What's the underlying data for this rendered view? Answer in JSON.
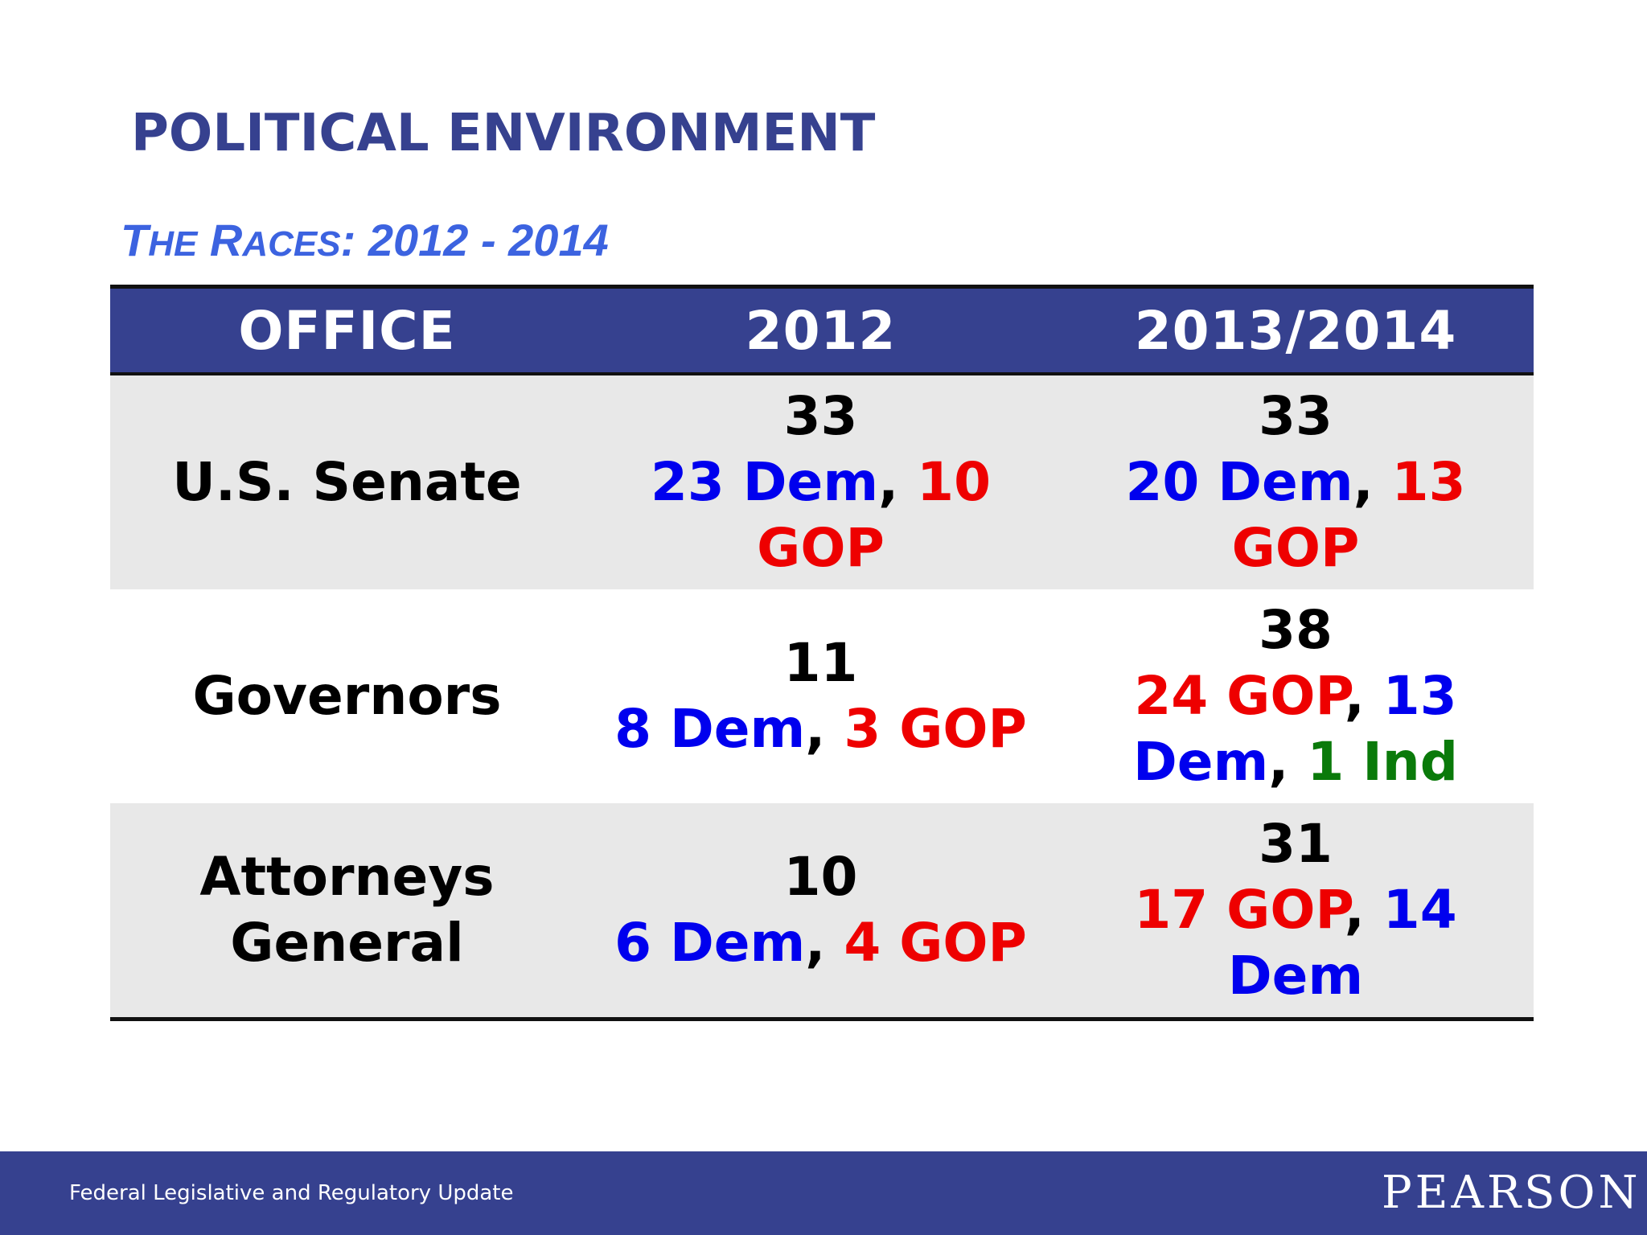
{
  "title": "POLITICAL ENVIRONMENT",
  "subtitle": {
    "a1": "T",
    "a2": "HE",
    "b1": "R",
    "b2": "ACES",
    "rest": ": 2012 - 2014"
  },
  "table": {
    "headers": [
      "OFFICE",
      "2012",
      "2013/2014"
    ],
    "rows": [
      {
        "office": "U.S. Senate",
        "y2012": {
          "total": "33",
          "parts": [
            {
              "text": "23 Dem",
              "party": "dem"
            },
            {
              "text": "10 GOP",
              "party": "gop"
            }
          ]
        },
        "y2014": {
          "total": "33",
          "parts": [
            {
              "text": "20 Dem",
              "party": "dem"
            },
            {
              "text": "13 GOP",
              "party": "gop"
            }
          ]
        }
      },
      {
        "office": "Governors",
        "y2012": {
          "total": "11",
          "parts": [
            {
              "text": "8 Dem",
              "party": "dem"
            },
            {
              "text": "3 GOP",
              "party": "gop"
            }
          ]
        },
        "y2014": {
          "total": "38",
          "parts": [
            {
              "text": "24 GOP",
              "party": "gop"
            },
            {
              "text": "13 Dem",
              "party": "dem"
            },
            {
              "text": "1 Ind",
              "party": "ind"
            }
          ]
        }
      },
      {
        "office": "Attorneys General",
        "y2012": {
          "total": "10",
          "parts": [
            {
              "text": "6 Dem",
              "party": "dem"
            },
            {
              "text": "4 GOP",
              "party": "gop"
            }
          ]
        },
        "y2014": {
          "total": "31",
          "parts": [
            {
              "text": "17 GOP",
              "party": "gop"
            },
            {
              "text": "14 Dem",
              "party": "dem"
            }
          ]
        }
      }
    ],
    "separator": ", "
  },
  "footer": {
    "text": "Federal Legislative and Regulatory Update",
    "logo": "PEARSON"
  },
  "colors": {
    "brand_navy": "#36418f",
    "subtitle_blue": "#3c63e0",
    "dem": "#0000ee",
    "gop": "#ee0000",
    "ind": "#0a7a0a",
    "row_shade": "#e8e8e8"
  }
}
